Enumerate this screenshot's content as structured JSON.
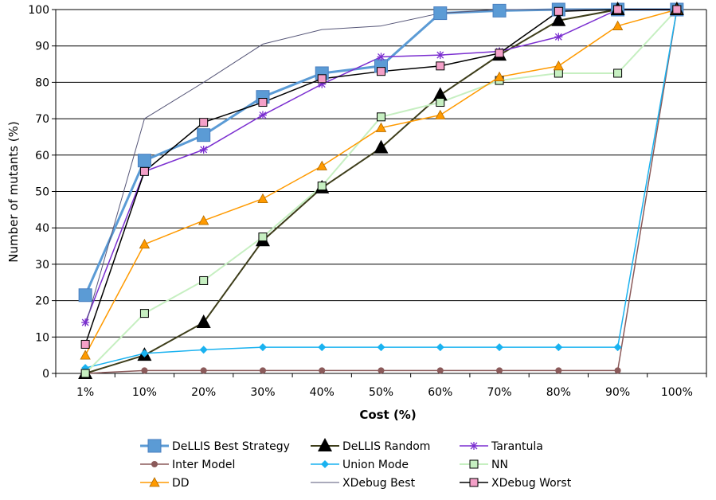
{
  "chart_data": {
    "type": "line",
    "title": "",
    "xlabel": "Cost (%)",
    "ylabel": "Number of mutants (%)",
    "ylim": [
      0,
      100
    ],
    "yticks": [
      0,
      10,
      20,
      30,
      40,
      50,
      60,
      70,
      80,
      90,
      100
    ],
    "grid": "horizontal",
    "legend_position": "bottom",
    "categories": [
      "1%",
      "10%",
      "20%",
      "30%",
      "40%",
      "50%",
      "60%",
      "70%",
      "80%",
      "90%",
      "100%"
    ],
    "series": [
      {
        "name": "DeLLIS Best Strategy",
        "color": "#5b9bd5",
        "marker": "square-large",
        "lineWidth": 3,
        "values": [
          21.5,
          58.5,
          65.5,
          76,
          82.5,
          84.5,
          99,
          99.7,
          100,
          100,
          100
        ]
      },
      {
        "name": "DeLLIS Random",
        "color": "#000000",
        "line_color": "#3d3d1a",
        "marker": "triangle-large",
        "lineWidth": 2,
        "values": [
          0,
          5,
          14,
          36.5,
          51,
          62,
          76.5,
          87.5,
          97,
          100,
          100
        ]
      },
      {
        "name": "Tarantula",
        "color": "#7b2fd0",
        "marker": "star",
        "lineWidth": 1.5,
        "values": [
          14,
          55.5,
          61.5,
          71,
          79.5,
          87,
          87.5,
          88.5,
          92.5,
          100,
          100
        ]
      },
      {
        "name": "Inter Model",
        "color": "#8b5a5a",
        "marker": "circle",
        "lineWidth": 1.5,
        "values": [
          0,
          0.8,
          0.8,
          0.8,
          0.8,
          0.8,
          0.8,
          0.8,
          0.8,
          0.8,
          100
        ]
      },
      {
        "name": "Union Mode",
        "color": "#1ab2f0",
        "marker": "diamond",
        "lineWidth": 1.5,
        "values": [
          1.5,
          5.5,
          6.5,
          7.2,
          7.2,
          7.2,
          7.2,
          7.2,
          7.2,
          7.2,
          100
        ]
      },
      {
        "name": "NN",
        "color": "#c6efc1",
        "marker": "square-outline",
        "lineWidth": 2,
        "values": [
          0,
          16.5,
          25.5,
          37.5,
          51.5,
          70.5,
          74.5,
          80.5,
          82.5,
          82.5,
          100
        ]
      },
      {
        "name": "DD",
        "color": "#ff9a00",
        "marker": "triangle",
        "lineWidth": 1.5,
        "values": [
          5,
          35.5,
          42,
          48,
          57,
          67.5,
          71,
          81.5,
          84.5,
          95.5,
          100
        ]
      },
      {
        "name": "XDebug Best",
        "color": "#555577",
        "marker": "none",
        "lineWidth": 1,
        "values": [
          13,
          70,
          80,
          90.5,
          94.5,
          95.5,
          99,
          100,
          100,
          100,
          100
        ]
      },
      {
        "name": "XDebug Worst",
        "color": "#f4a0c8",
        "line_color": "#000000",
        "marker": "square-pink",
        "lineWidth": 1.5,
        "values": [
          8,
          55.5,
          69,
          74.5,
          81,
          83,
          84.5,
          88,
          99.5,
          100,
          100
        ]
      }
    ]
  }
}
